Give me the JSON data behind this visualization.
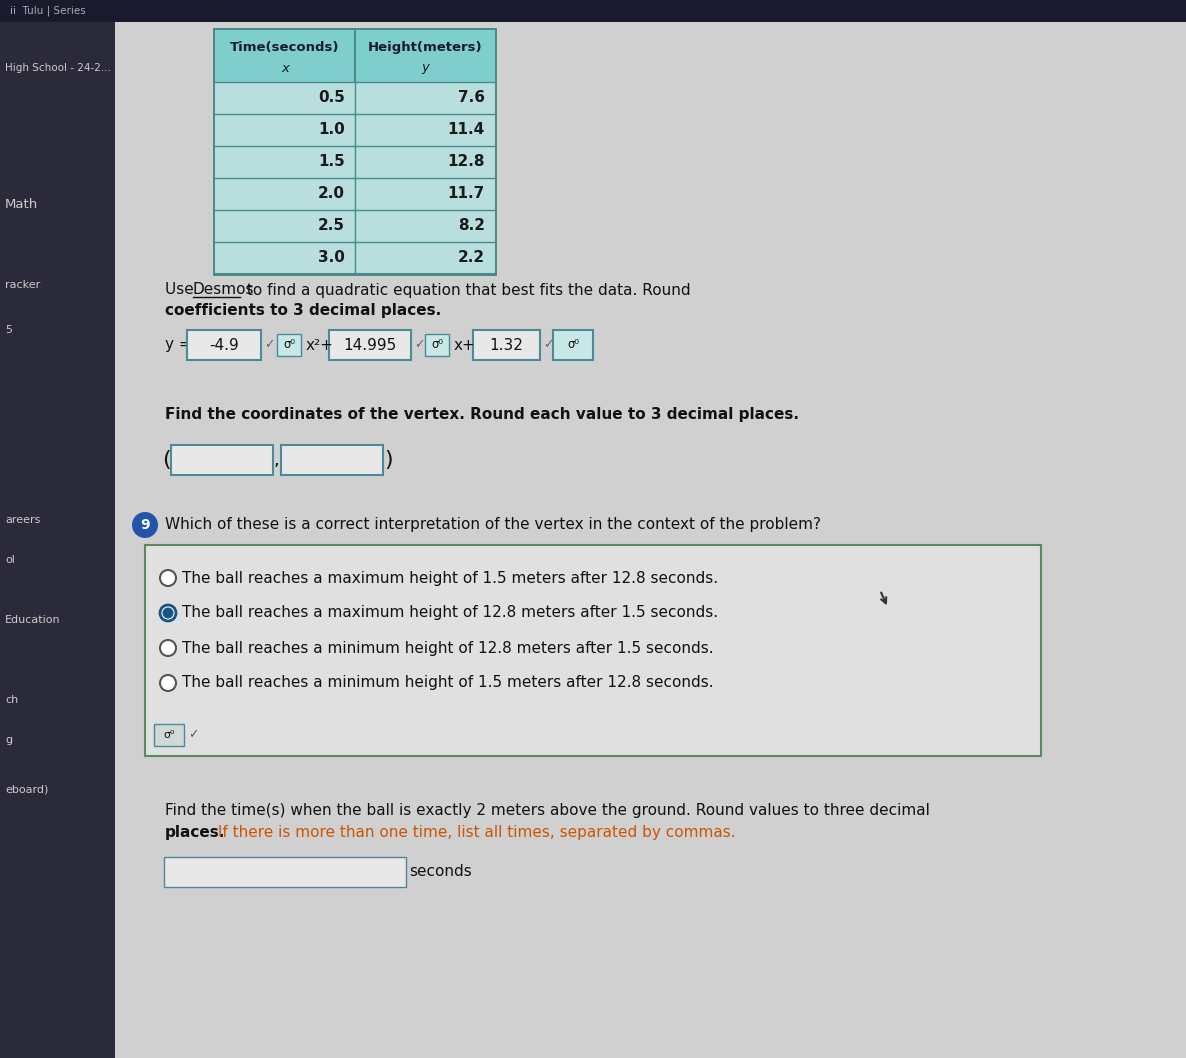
{
  "bg_color": "#c8c8c8",
  "top_bar_color": "#1a1a2e",
  "top_bar_text": "ii  Tulu | Series",
  "sidebar_bg": "#2a2a3a",
  "sidebar_text_color": "#cccccc",
  "content_bg": "#d0d0d0",
  "table_header_bg": "#7ecece",
  "table_header_text": "#1a1a2e",
  "table_row_bg": "#b8dede",
  "table_border_color": "#4a8a8a",
  "table_text_color": "#1a1a1a",
  "table_data": [
    [
      "0.5",
      "7.6"
    ],
    [
      "1.0",
      "11.4"
    ],
    [
      "1.5",
      "12.8"
    ],
    [
      "2.0",
      "11.7"
    ],
    [
      "2.5",
      "8.2"
    ],
    [
      "3.0",
      "2.2"
    ]
  ],
  "q1_text_before": "Use ",
  "q1_desmos": "Desmos",
  "q1_text_after": " to find a quadratic equation that best fits the data. Round coefficients to 3 decimal places.",
  "eq_coeff1": "-4.9",
  "eq_coeff2": "14.995",
  "eq_coeff3": "1.32",
  "q2_text": "Find the coordinates of the vertex. Round each value to 3 decimal places.",
  "q3_number": "9",
  "q3_text": "Which of these is a correct interpretation of the vertex in the context of the problem?",
  "choices": [
    "The ball reaches a maximum height of 1.5 meters after 12.8 seconds.",
    "The ball reaches a maximum height of 12.8 meters after 1.5 seconds.",
    "The ball reaches a minimum height of 12.8 meters after 1.5 seconds.",
    "The ball reaches a minimum height of 1.5 meters after 12.8 seconds."
  ],
  "selected_choice": 1,
  "q4_line1": "Find the time(s) when the ball is exactly 2 meters above the ground. Round values to three decimal",
  "q4_line2_black": "places.",
  "q4_line2_orange": " If there is more than one time, list all times, separated by commas.",
  "seconds_label": "seconds",
  "input_box_bg": "#e8e8e8",
  "input_box_border": "#4a8a9a",
  "choice_box_bg": "#e0e0e0",
  "choice_box_border": "#5a8a5a",
  "dark_text": "#111111",
  "orange_text": "#cc5500",
  "radio_fill": "#1a5588",
  "circle_fill": "#2255aa",
  "sidebar_items": [
    [
      5,
      68,
      "High School - 24-2...",
      7.5
    ],
    [
      5,
      205,
      "Math",
      9.5
    ],
    [
      5,
      285,
      "racker",
      8
    ],
    [
      5,
      330,
      "5",
      8
    ],
    [
      5,
      520,
      "areers",
      8
    ],
    [
      5,
      560,
      "ol",
      8
    ],
    [
      5,
      620,
      "Education",
      8
    ],
    [
      5,
      700,
      "ch",
      8
    ],
    [
      5,
      740,
      "g",
      8
    ],
    [
      5,
      790,
      "eboard)",
      8
    ]
  ]
}
